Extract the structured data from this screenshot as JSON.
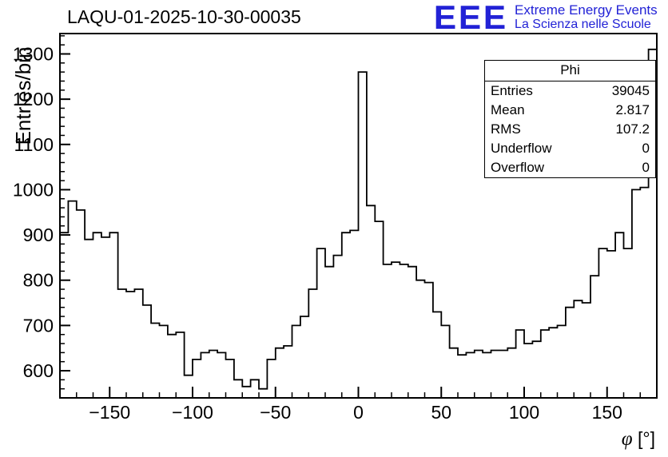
{
  "header": {
    "title": "LAQU-01-2025-10-30-00035"
  },
  "logo": {
    "letters": "EEE",
    "line1": "Extreme Energy Events",
    "line2": "La Scienza nelle Scuole",
    "color": "#2222d6"
  },
  "stats": {
    "title": "Phi",
    "rows": [
      {
        "label": "Entries",
        "value": "39045"
      },
      {
        "label": "Mean",
        "value": "2.817"
      },
      {
        "label": "RMS",
        "value": "107.2"
      },
      {
        "label": "Underflow",
        "value": "0"
      },
      {
        "label": "Overflow",
        "value": "0"
      }
    ]
  },
  "chart_data": {
    "type": "bar",
    "style": "step-histogram",
    "title": "LAQU-01-2025-10-30-00035",
    "xlabel": "φ [°]",
    "ylabel": "Entries/bin",
    "xlim": [
      -180,
      180
    ],
    "ylim": [
      540,
      1345
    ],
    "bin_start": -180,
    "bin_width": 5,
    "values": [
      905,
      975,
      955,
      890,
      905,
      895,
      905,
      780,
      775,
      780,
      745,
      705,
      700,
      680,
      685,
      590,
      625,
      640,
      645,
      640,
      625,
      580,
      565,
      580,
      560,
      625,
      650,
      655,
      700,
      720,
      780,
      870,
      830,
      855,
      905,
      910,
      1260,
      965,
      930,
      835,
      840,
      835,
      830,
      800,
      795,
      730,
      700,
      650,
      635,
      640,
      645,
      640,
      645,
      645,
      650,
      690,
      660,
      665,
      690,
      695,
      700,
      740,
      755,
      750,
      810,
      870,
      865,
      905,
      870,
      1000,
      1005,
      1310
    ],
    "x_ticks": [
      -150,
      -100,
      -50,
      0,
      50,
      100,
      150
    ],
    "y_ticks": [
      600,
      700,
      800,
      900,
      1000,
      1100,
      1200,
      1300
    ],
    "x_minor_step": 10,
    "y_minor_step": 20,
    "line_color": "#000000",
    "grid": false,
    "legend": "none (stats box top-right: Phi / Entries 39045 / Mean 2.817 / RMS 107.2 / Underflow 0 / Overflow 0)"
  }
}
